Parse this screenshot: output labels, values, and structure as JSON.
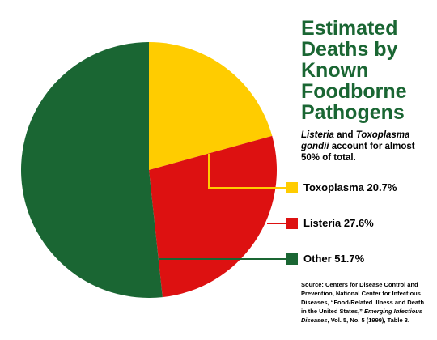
{
  "chart_data": {
    "type": "pie",
    "title": "Estimated Deaths by Known Foodborne Pathogens",
    "subtitle": [
      {
        "text": "Listeria",
        "italic": true
      },
      {
        "text": " and ",
        "italic": false
      },
      {
        "text": "Toxoplasma gondii",
        "italic": true
      },
      {
        "text": " account for almost 50% of total.",
        "italic": false
      }
    ],
    "categories": [
      "Toxoplasma",
      "Listeria",
      "Other"
    ],
    "values": [
      20.7,
      27.6,
      51.7
    ],
    "value_labels": [
      "20.7%",
      "27.6%",
      "51.7%"
    ],
    "colors": [
      "#ffcc00",
      "#dd1111",
      "#1a6633"
    ],
    "source": [
      {
        "text": "Source: Centers for Disease Control and Prevention, National Center for Infectious Diseases, “Food-Related Illness and Death in the United States,” ",
        "italic": false
      },
      {
        "text": "Emerging Infectious Diseases",
        "italic": true
      },
      {
        "text": ", Vol. 5, No. 5 (1999), Table 3.",
        "italic": false
      }
    ]
  }
}
